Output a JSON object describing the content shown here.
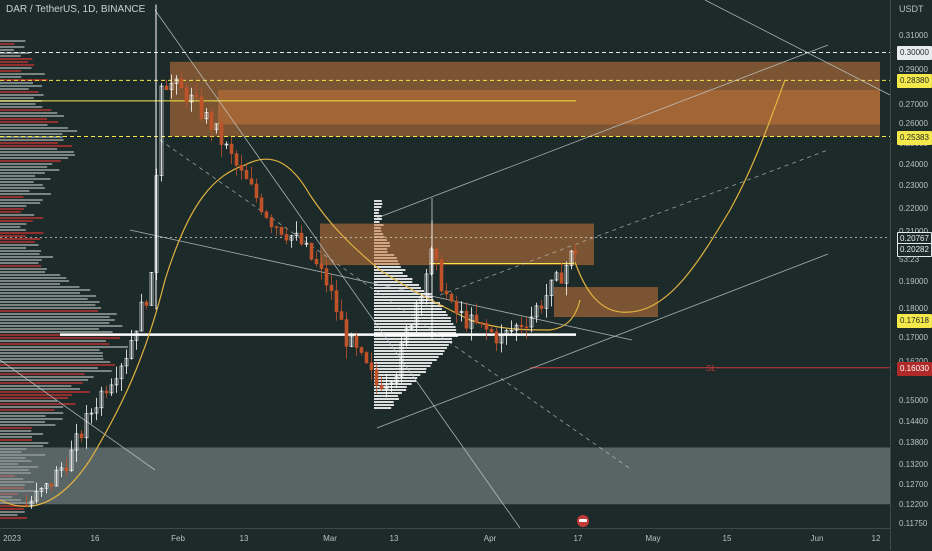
{
  "title": "DAR / TetherUS, 1D, BINANCE",
  "price_axis": {
    "unit": "USDT",
    "ticks": [
      "0.31000",
      "0.29000",
      "0.27000",
      "0.26000",
      "0.25000",
      "0.24000",
      "0.23000",
      "0.22000",
      "0.21000",
      "0.19000",
      "0.18000",
      "0.17000",
      "0.16200",
      "0.15000",
      "0.14400",
      "0.13800",
      "0.13200",
      "0.12700",
      "0.12200",
      "0.11750"
    ],
    "tags": [
      {
        "id": "p30000",
        "text": "0.30000",
        "price": 0.3,
        "bg": "#e8ecec",
        "fg": "#1c2b2a",
        "border": "#e8ecec"
      },
      {
        "id": "p28380",
        "text": "0.28380",
        "price": 0.2838,
        "bg": "#f5e84a",
        "fg": "#1c2b2a",
        "border": "#f5e84a"
      },
      {
        "id": "p25383",
        "text": "0.25383",
        "price": 0.25383,
        "bg": "#f5e84a",
        "fg": "#1c2b2a",
        "border": "#f5e84a"
      },
      {
        "id": "p20767",
        "text": "0.20767",
        "price": 0.20767,
        "bg": "#1c2b2a",
        "fg": "#e8ecec",
        "border": "#e8ecec"
      },
      {
        "id": "p20282",
        "text": "0.20282",
        "price": 0.20282,
        "bg": "#1c2b2a",
        "fg": "#e8ecec",
        "border": "#e8ecec"
      },
      {
        "id": "p17618",
        "text": "0.17618",
        "price": 0.17618,
        "bg": "#f5e84a",
        "fg": "#1c2b2a",
        "border": "#f5e84a"
      },
      {
        "id": "p16030",
        "text": "0.16030",
        "price": 0.1603,
        "bg": "#b02a2a",
        "fg": "#ffffff",
        "border": "#b02a2a"
      }
    ],
    "countdown": "53:23"
  },
  "time_axis": {
    "labels": [
      "2023",
      "16",
      "Feb",
      "13",
      "Mar",
      "13",
      "Apr",
      "17",
      "May",
      "15",
      "Jun",
      "12"
    ]
  },
  "annotations": {
    "sl_label": "SL"
  },
  "colors": {
    "background": "#1c2b2a",
    "bull": "#ffffff",
    "bear": "#c0522a",
    "zone": "#c8763a",
    "band": "#8d9694",
    "ma": "#e2b340",
    "sl": "#c43a3a",
    "trendline": "#c9d1d0"
  },
  "chart_data": {
    "type": "candlestick",
    "symbol": "DAR / TetherUS",
    "interval": "1D",
    "exchange": "BINANCE",
    "yscale": "log",
    "ylim": [
      0.1175,
      0.33
    ],
    "last_price": 0.20282,
    "levels": [
      0.3,
      0.2838,
      0.25383,
      0.20767,
      0.17618,
      0.1603
    ],
    "zones": [
      {
        "from": 0.2538,
        "to": 0.2945
      },
      {
        "from": 0.1966,
        "to": 0.2135
      },
      {
        "from": 0.1773,
        "to": 0.1882
      },
      {
        "from": 0.1222,
        "to": 0.1368
      }
    ],
    "closes_sample": [
      0.122,
      0.126,
      0.135,
      0.15,
      0.165,
      0.19,
      0.285,
      0.276,
      0.26,
      0.235,
      0.215,
      0.205,
      0.19,
      0.17,
      0.155,
      0.16,
      0.2,
      0.18,
      0.175,
      0.17,
      0.178,
      0.19,
      0.2028
    ]
  }
}
